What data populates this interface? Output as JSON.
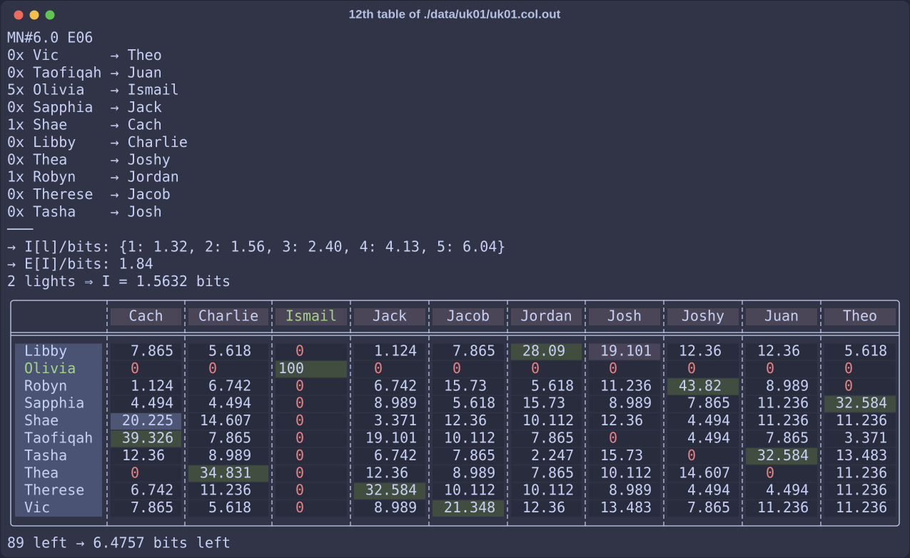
{
  "window": {
    "title": "12th table of ./data/uk01/uk01.col.out"
  },
  "lines": [
    "MN#6.0 E06",
    "0x Vic      → Theo",
    "0x Taofiqah → Juan",
    "5x Olivia   → Ismail",
    "0x Sapphia  → Jack",
    "1x Shae     → Cach",
    "0x Libby    → Charlie",
    "0x Thea     → Joshy",
    "1x Robyn    → Jordan",
    "0x Therese  → Jacob",
    "0x Tasha    → Josh",
    "───",
    "→ I[l]/bits: {1: 1.32, 2: 1.56, 3: 2.40, 4: 4.13, 5: 6.04}",
    "→ E[I]/bits: 1.84",
    "2 lights ⇒ I = 1.5632 bits"
  ],
  "table": {
    "columns": [
      "Cach",
      "Charlie",
      "Ismail",
      "Jack",
      "Jacob",
      "Jordan",
      "Josh",
      "Joshy",
      "Juan",
      "Theo"
    ],
    "rows": [
      {
        "label": "Libby",
        "values": [
          7.865,
          5.618,
          0,
          1.124,
          7.865,
          28.09,
          19.101,
          12.36,
          12.36,
          5.618
        ]
      },
      {
        "label": "Olivia",
        "values": [
          0,
          0,
          100,
          0,
          0,
          0,
          0,
          0,
          0,
          0
        ]
      },
      {
        "label": "Robyn",
        "values": [
          1.124,
          6.742,
          0,
          6.742,
          15.73,
          5.618,
          11.236,
          43.82,
          8.989,
          0
        ]
      },
      {
        "label": "Sapphia",
        "values": [
          4.494,
          4.494,
          0,
          8.989,
          5.618,
          15.73,
          8.989,
          7.865,
          11.236,
          32.584
        ]
      },
      {
        "label": "Shae",
        "values": [
          20.225,
          14.607,
          0,
          3.371,
          12.36,
          10.112,
          12.36,
          4.494,
          11.236,
          11.236
        ]
      },
      {
        "label": "Taofiqah",
        "values": [
          39.326,
          7.865,
          0,
          19.101,
          10.112,
          7.865,
          0,
          4.494,
          7.865,
          3.371
        ]
      },
      {
        "label": "Tasha",
        "values": [
          12.36,
          8.989,
          0,
          6.742,
          7.865,
          2.247,
          15.73,
          0,
          32.584,
          13.483
        ]
      },
      {
        "label": "Thea",
        "values": [
          0,
          34.831,
          0,
          12.36,
          8.989,
          7.865,
          10.112,
          14.607,
          0,
          11.236
        ]
      },
      {
        "label": "Therese",
        "values": [
          6.742,
          11.236,
          0,
          32.584,
          10.112,
          10.112,
          8.989,
          4.494,
          4.494,
          11.236
        ]
      },
      {
        "label": "Vic",
        "values": [
          7.865,
          5.618,
          0,
          8.989,
          21.348,
          12.36,
          13.483,
          7.865,
          11.236,
          11.236
        ]
      }
    ]
  },
  "footer": "89 left → 6.4757 bits left"
}
